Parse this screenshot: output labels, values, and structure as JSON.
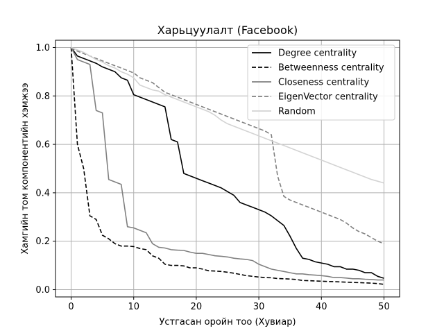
{
  "chart_data": {
    "type": "line",
    "title": "Харьцуулалт (Facebook)",
    "xlabel": "Устгасан оройн тоо (Хувиар)",
    "ylabel": "Хамгийн том компонентийн хэмжээ",
    "xlim": [
      -2.5,
      52.5
    ],
    "ylim": [
      -0.03,
      1.03
    ],
    "xticks": [
      0,
      10,
      20,
      30,
      40,
      50
    ],
    "yticks": [
      0.0,
      0.2,
      0.4,
      0.6,
      0.8,
      1.0
    ],
    "xtick_labels": [
      "0",
      "10",
      "20",
      "30",
      "40",
      "50"
    ],
    "ytick_labels": [
      "0.0",
      "0.2",
      "0.4",
      "0.6",
      "0.8",
      "1.0"
    ],
    "grid": true,
    "legend_position": "top-right",
    "series": [
      {
        "name": "Degree centrality",
        "color": "#000000",
        "dash": "solid",
        "x": [
          0,
          1,
          2,
          3,
          4,
          5,
          6,
          7,
          8,
          9,
          10,
          11,
          12,
          13,
          14,
          15,
          16,
          17,
          18,
          19,
          20,
          21,
          22,
          23,
          24,
          25,
          26,
          27,
          28,
          29,
          30,
          31,
          32,
          33,
          34,
          35,
          36,
          37,
          38,
          39,
          40,
          41,
          42,
          43,
          44,
          45,
          46,
          47,
          48,
          49,
          50
        ],
        "y": [
          1.0,
          0.965,
          0.955,
          0.945,
          0.935,
          0.92,
          0.91,
          0.9,
          0.875,
          0.865,
          0.805,
          0.795,
          0.785,
          0.775,
          0.765,
          0.755,
          0.62,
          0.61,
          0.48,
          0.47,
          0.46,
          0.45,
          0.44,
          0.43,
          0.42,
          0.405,
          0.39,
          0.36,
          0.35,
          0.34,
          0.33,
          0.32,
          0.305,
          0.285,
          0.265,
          0.22,
          0.17,
          0.13,
          0.125,
          0.115,
          0.11,
          0.105,
          0.095,
          0.095,
          0.085,
          0.085,
          0.08,
          0.07,
          0.07,
          0.055,
          0.047
        ]
      },
      {
        "name": "Betweenness centrality",
        "color": "#000000",
        "dash": "dashed",
        "x": [
          0,
          1,
          2,
          3,
          4,
          5,
          6,
          7,
          8,
          9,
          10,
          11,
          12,
          13,
          14,
          15,
          16,
          17,
          18,
          19,
          20,
          21,
          22,
          23,
          24,
          25,
          26,
          27,
          28,
          29,
          30,
          31,
          32,
          33,
          34,
          35,
          36,
          37,
          38,
          39,
          40,
          41,
          42,
          43,
          44,
          45,
          46,
          47,
          48,
          49,
          50
        ],
        "y": [
          1.0,
          0.6,
          0.5,
          0.305,
          0.29,
          0.225,
          0.21,
          0.19,
          0.18,
          0.18,
          0.178,
          0.17,
          0.165,
          0.14,
          0.13,
          0.105,
          0.1,
          0.1,
          0.098,
          0.09,
          0.09,
          0.085,
          0.078,
          0.077,
          0.075,
          0.072,
          0.068,
          0.063,
          0.058,
          0.055,
          0.052,
          0.05,
          0.049,
          0.046,
          0.045,
          0.044,
          0.042,
          0.038,
          0.037,
          0.036,
          0.035,
          0.034,
          0.033,
          0.032,
          0.031,
          0.03,
          0.029,
          0.028,
          0.027,
          0.025,
          0.022
        ]
      },
      {
        "name": "Closeness centrality",
        "color": "#808080",
        "dash": "solid",
        "x": [
          0,
          1,
          2,
          3,
          4,
          5,
          6,
          7,
          8,
          9,
          10,
          11,
          12,
          13,
          14,
          15,
          16,
          17,
          18,
          19,
          20,
          21,
          22,
          23,
          24,
          25,
          26,
          27,
          28,
          29,
          30,
          31,
          32,
          33,
          34,
          35,
          36,
          37,
          38,
          39,
          40,
          41,
          42,
          43,
          44,
          45,
          46,
          47,
          48,
          49,
          50
        ],
        "y": [
          1.0,
          0.95,
          0.94,
          0.93,
          0.74,
          0.73,
          0.455,
          0.445,
          0.435,
          0.26,
          0.255,
          0.245,
          0.235,
          0.19,
          0.175,
          0.172,
          0.165,
          0.163,
          0.162,
          0.155,
          0.15,
          0.15,
          0.145,
          0.14,
          0.138,
          0.135,
          0.13,
          0.127,
          0.125,
          0.12,
          0.105,
          0.095,
          0.085,
          0.08,
          0.075,
          0.07,
          0.065,
          0.065,
          0.062,
          0.06,
          0.058,
          0.055,
          0.05,
          0.05,
          0.048,
          0.045,
          0.045,
          0.043,
          0.042,
          0.04,
          0.04
        ]
      },
      {
        "name": "EigenVector centrality",
        "color": "#808080",
        "dash": "dashed",
        "x": [
          0,
          1,
          2,
          3,
          4,
          5,
          6,
          7,
          8,
          9,
          10,
          11,
          12,
          13,
          14,
          15,
          16,
          17,
          18,
          19,
          20,
          21,
          22,
          23,
          24,
          25,
          26,
          27,
          28,
          29,
          30,
          31,
          32,
          33,
          34,
          35,
          36,
          37,
          38,
          39,
          40,
          41,
          42,
          43,
          44,
          45,
          46,
          47,
          48,
          49,
          50
        ],
        "y": [
          1.0,
          0.985,
          0.975,
          0.965,
          0.955,
          0.945,
          0.935,
          0.925,
          0.915,
          0.905,
          0.895,
          0.875,
          0.865,
          0.855,
          0.835,
          0.815,
          0.805,
          0.795,
          0.785,
          0.775,
          0.765,
          0.755,
          0.745,
          0.735,
          0.725,
          0.715,
          0.705,
          0.695,
          0.685,
          0.675,
          0.665,
          0.655,
          0.64,
          0.47,
          0.385,
          0.37,
          0.36,
          0.35,
          0.34,
          0.33,
          0.32,
          0.31,
          0.3,
          0.29,
          0.275,
          0.255,
          0.24,
          0.23,
          0.215,
          0.2,
          0.19
        ]
      },
      {
        "name": "Random",
        "color": "#d3d3d3",
        "dash": "solid",
        "x": [
          0,
          1,
          2,
          3,
          4,
          5,
          6,
          7,
          8,
          9,
          10,
          11,
          12,
          13,
          14,
          15,
          16,
          17,
          18,
          19,
          20,
          21,
          22,
          23,
          24,
          25,
          26,
          27,
          28,
          29,
          30,
          31,
          32,
          33,
          34,
          35,
          36,
          37,
          38,
          39,
          40,
          41,
          42,
          43,
          44,
          45,
          46,
          47,
          48,
          49,
          50
        ],
        "y": [
          1.0,
          0.99,
          0.98,
          0.965,
          0.95,
          0.94,
          0.925,
          0.915,
          0.9,
          0.89,
          0.875,
          0.845,
          0.835,
          0.825,
          0.82,
          0.805,
          0.795,
          0.785,
          0.775,
          0.765,
          0.755,
          0.745,
          0.735,
          0.72,
          0.7,
          0.685,
          0.675,
          0.665,
          0.655,
          0.645,
          0.635,
          0.625,
          0.615,
          0.605,
          0.595,
          0.585,
          0.575,
          0.565,
          0.555,
          0.545,
          0.535,
          0.525,
          0.515,
          0.505,
          0.495,
          0.485,
          0.475,
          0.465,
          0.455,
          0.448,
          0.44
        ]
      }
    ]
  }
}
